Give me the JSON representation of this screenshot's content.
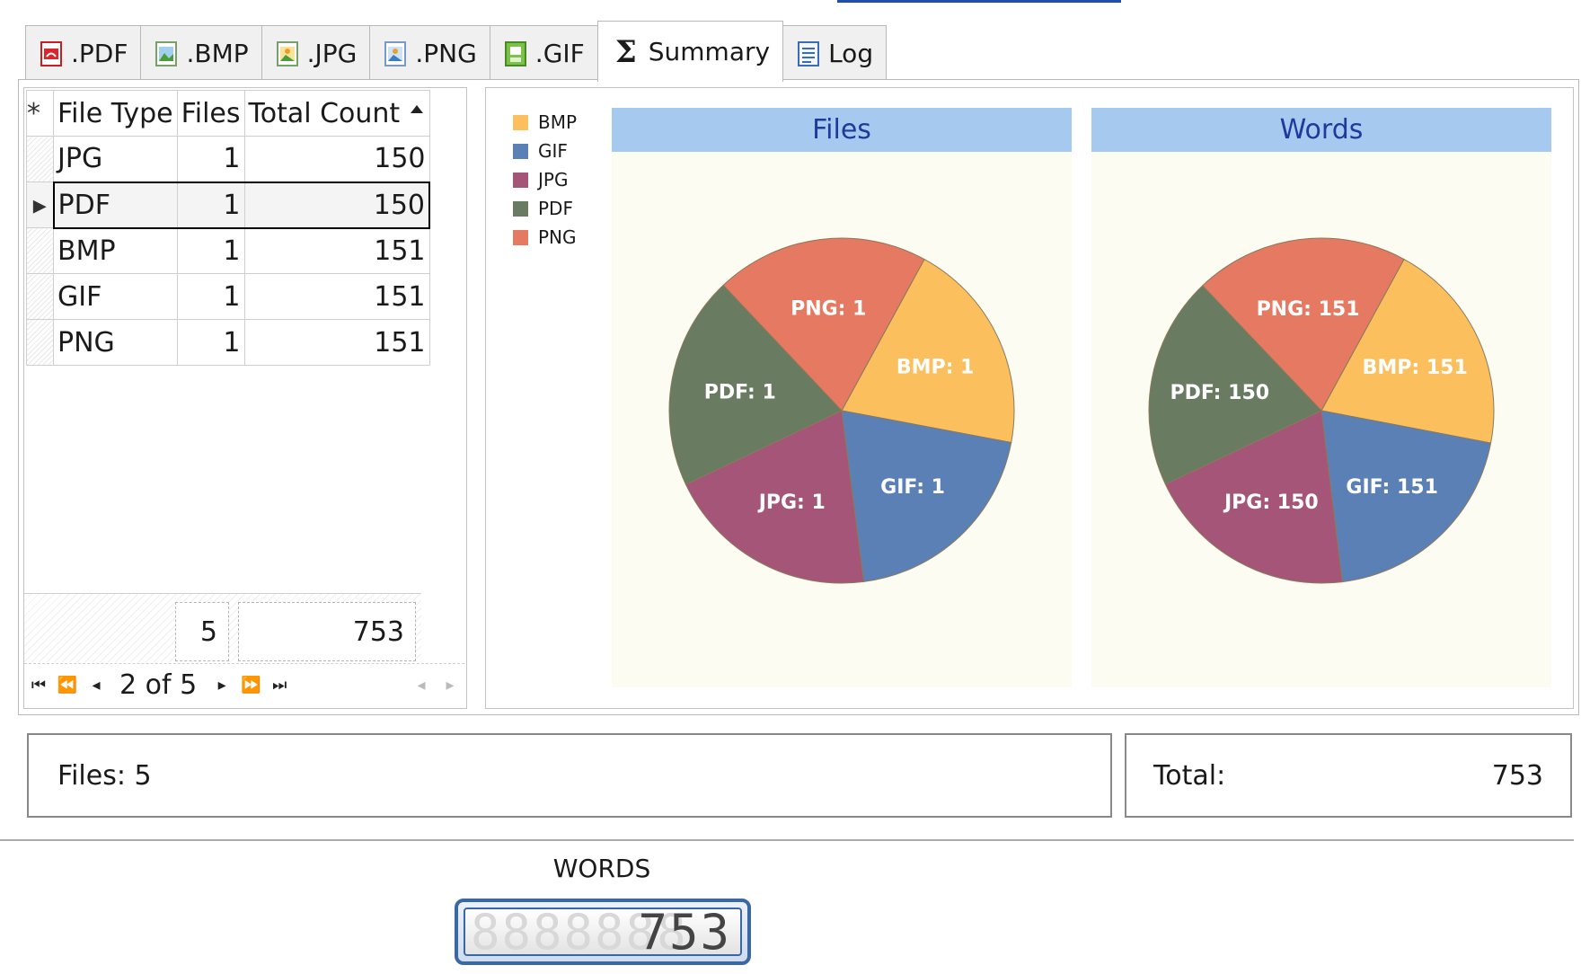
{
  "tabs": [
    {
      "label": ".PDF",
      "icon": "pdf-icon",
      "color": "#d9262a"
    },
    {
      "label": ".BMP",
      "icon": "bmp-icon",
      "color": "#4a9d3a"
    },
    {
      "label": ".JPG",
      "icon": "jpg-icon",
      "color": "#4a9d3a"
    },
    {
      "label": ".PNG",
      "icon": "png-icon",
      "color": "#3a7bc8"
    },
    {
      "label": ".GIF",
      "icon": "gif-icon",
      "color": "#5ba832"
    },
    {
      "label": "Summary",
      "icon": "sigma-icon",
      "active": true
    },
    {
      "label": "Log",
      "icon": "document-icon",
      "color": "#3a6bb5"
    }
  ],
  "grid": {
    "headers": {
      "indicator": "*",
      "type": "File Type",
      "files": "Files",
      "total": "Total Count"
    },
    "sorted_column": "Total Count",
    "sort_direction": "ascending",
    "rows": [
      {
        "type": "JPG",
        "files": "1",
        "total": "150"
      },
      {
        "type": "PDF",
        "files": "1",
        "total": "150",
        "current": true
      },
      {
        "type": "BMP",
        "files": "1",
        "total": "151"
      },
      {
        "type": "GIF",
        "files": "1",
        "total": "151"
      },
      {
        "type": "PNG",
        "files": "1",
        "total": "151"
      }
    ],
    "footer": {
      "files_sum": "5",
      "total_sum": "753"
    },
    "pager": {
      "text": "2 of 5"
    }
  },
  "chart_data": [
    {
      "type": "pie",
      "title": "Files",
      "labels": [
        "BMP",
        "GIF",
        "JPG",
        "PDF",
        "PNG"
      ],
      "values": [
        1,
        1,
        1,
        1,
        1
      ],
      "slice_labels": [
        "BMP: 1",
        "GIF: 1",
        "JPG: 1",
        "PDF: 1",
        "PNG: 1"
      ],
      "colors": [
        "#fcbf5e",
        "#5a80b5",
        "#a55577",
        "#697b60",
        "#e57961"
      ],
      "legend_position": "left"
    },
    {
      "type": "pie",
      "title": "Words",
      "labels": [
        "BMP",
        "GIF",
        "JPG",
        "PDF",
        "PNG"
      ],
      "values": [
        151,
        151,
        150,
        150,
        151
      ],
      "slice_labels": [
        "BMP: 151",
        "GIF: 151",
        "JPG: 150",
        "PDF: 150",
        "PNG: 151"
      ],
      "colors": [
        "#fcbf5e",
        "#5a80b5",
        "#a55577",
        "#697b60",
        "#e57961"
      ],
      "legend_position": "left"
    }
  ],
  "legend": [
    {
      "label": "BMP",
      "color": "#fcbf5e"
    },
    {
      "label": "GIF",
      "color": "#5a80b5"
    },
    {
      "label": "JPG",
      "color": "#a55577"
    },
    {
      "label": "PDF",
      "color": "#697b60"
    },
    {
      "label": "PNG",
      "color": "#e57961"
    }
  ],
  "status": {
    "files_text": "Files: 5",
    "total_label": "Total:",
    "total_value": "753"
  },
  "words_counter": {
    "label": "WORDS",
    "value": "753",
    "ghost": "8888888"
  }
}
